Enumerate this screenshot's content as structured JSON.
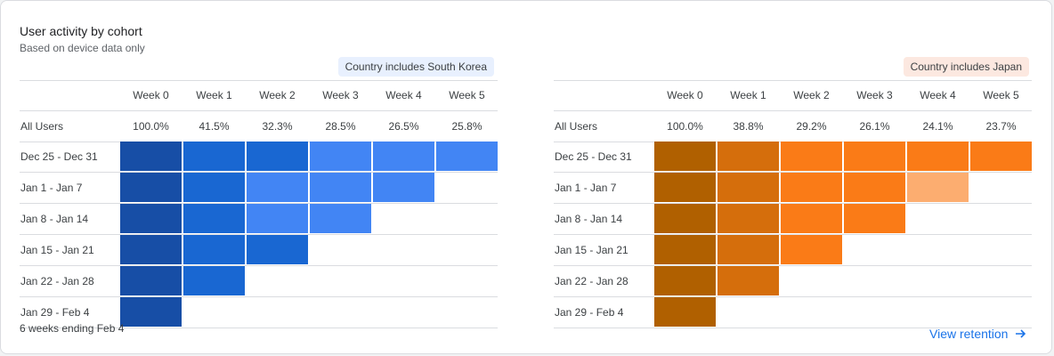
{
  "header": {
    "title": "User activity by cohort",
    "subtitle": "Based on device data only"
  },
  "weeks": [
    "Week 0",
    "Week 1",
    "Week 2",
    "Week 3",
    "Week 4",
    "Week 5"
  ],
  "cohorts": [
    "Dec 25 - Dec 31",
    "Jan 1 - Jan 7",
    "Jan 8 - Jan 14",
    "Jan 15 - Jan 21",
    "Jan 22 - Jan 28",
    "Jan 29 - Feb 4"
  ],
  "panels": [
    {
      "chip_label": "Country includes South Korea",
      "chip_bg": "#e8f0fe",
      "all_users_label": "All Users",
      "all_users_values": [
        "100.0%",
        "41.5%",
        "32.3%",
        "28.5%",
        "26.5%",
        "25.8%"
      ],
      "heat_colors": [
        "#174ea6",
        "#1967d2",
        "#4285f4",
        "#aecbfa"
      ],
      "cell_levels": [
        [
          0,
          1,
          1,
          2,
          2,
          2
        ],
        [
          0,
          1,
          2,
          2,
          2
        ],
        [
          0,
          1,
          2,
          2
        ],
        [
          0,
          1,
          1
        ],
        [
          0,
          1
        ],
        [
          0
        ]
      ]
    },
    {
      "chip_label": "Country includes Japan",
      "chip_bg": "#fce8e0",
      "all_users_label": "All Users",
      "all_users_values": [
        "100.0%",
        "38.8%",
        "29.2%",
        "26.1%",
        "24.1%",
        "23.7%"
      ],
      "heat_colors": [
        "#b06000",
        "#d56e0c",
        "#fa7b17",
        "#fcad70"
      ],
      "cell_levels": [
        [
          0,
          1,
          2,
          2,
          2,
          2
        ],
        [
          0,
          1,
          2,
          2,
          3
        ],
        [
          0,
          1,
          2,
          2
        ],
        [
          0,
          1,
          2
        ],
        [
          0,
          1
        ],
        [
          0
        ]
      ]
    }
  ],
  "footer": {
    "note": "6 weeks ending Feb 4",
    "link_label": "View retention",
    "link_icon": "arrow-right-icon",
    "link_color": "#1a73e8"
  }
}
